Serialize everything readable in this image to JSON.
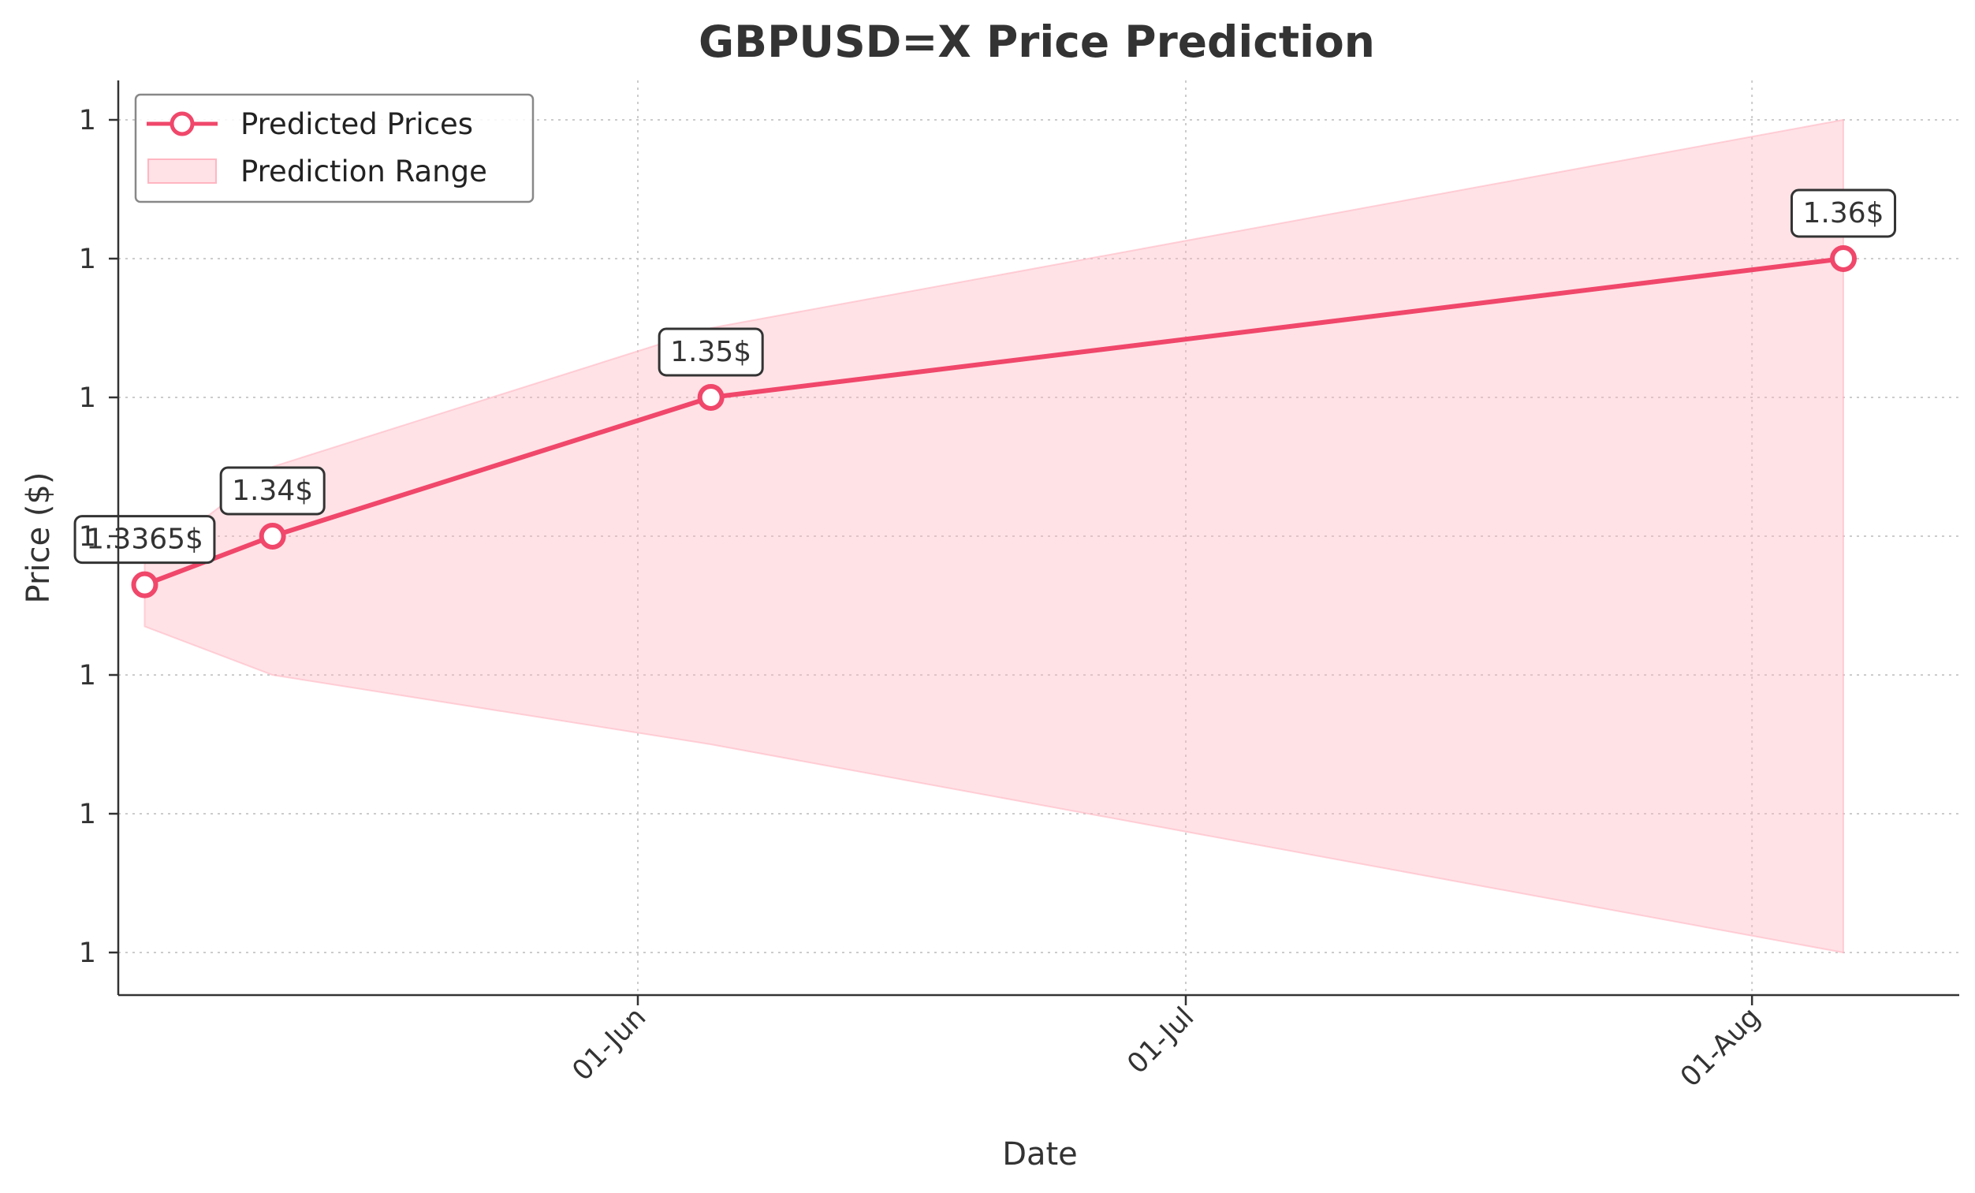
{
  "chart_data": {
    "type": "line",
    "title": "GBPUSD=X Price Prediction",
    "xlabel": "Date",
    "ylabel": "Price ($)",
    "x_ticks": [
      "01-Jun",
      "01-Jul",
      "01-Aug"
    ],
    "y_ticks": [
      "1",
      "1",
      "1",
      "1",
      "1",
      "1",
      "1"
    ],
    "grid": true,
    "legend_position": "top-left",
    "series": [
      {
        "name": "Predicted Prices",
        "color": "#f0476a",
        "x": [
          "05-May",
          "12-May",
          "05-Jun",
          "06-Aug"
        ],
        "y": [
          1.3365,
          1.34,
          1.35,
          1.36
        ]
      }
    ],
    "range": {
      "name": "Prediction Range",
      "color": "#ffb6c1",
      "x": [
        "05-May",
        "12-May",
        "05-Jun",
        "06-Aug"
      ],
      "lower": [
        1.3335,
        1.33,
        1.325,
        1.31
      ],
      "upper": [
        1.338,
        1.345,
        1.355,
        1.37
      ]
    },
    "annotations": [
      "1.3365$",
      "1.34$",
      "1.35$",
      "1.36$"
    ]
  }
}
